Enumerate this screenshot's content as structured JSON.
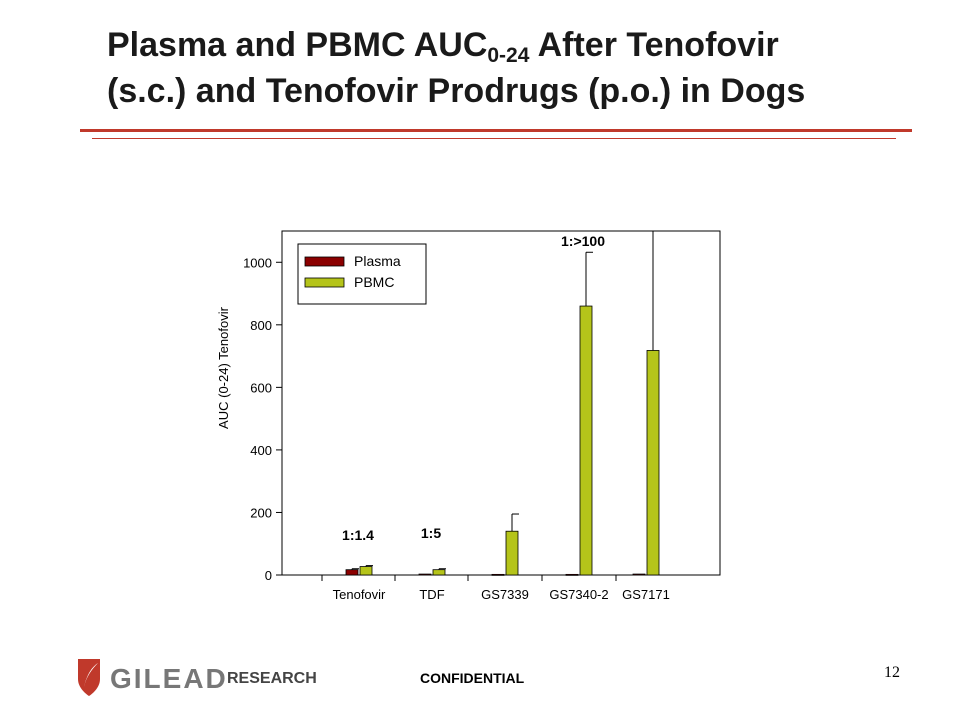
{
  "slide": {
    "title_line1_pre": "Plasma and PBMC AUC",
    "title_sub": "0-24",
    "title_line1_post": " After Tenofovir",
    "title_line2": "(s.c.) and Tenofovir Prodrugs (p.o.) in Dogs",
    "accent_color": "#c0392b"
  },
  "chart_data": {
    "type": "bar",
    "ylabel": "AUC (0-24) Tenofovir",
    "ylim": [
      0,
      1100
    ],
    "yticks": [
      0,
      200,
      400,
      600,
      800,
      1000
    ],
    "categories": [
      "Tenofovir",
      "TDF",
      "GS7339",
      "GS7340-2",
      "GS7171"
    ],
    "series": [
      {
        "name": "Plasma",
        "color": "#8b0000",
        "values": [
          17,
          3,
          2,
          2,
          3
        ],
        "error": [
          3,
          0,
          0,
          0,
          0
        ]
      },
      {
        "name": "PBMC",
        "color": "#b5c41a",
        "values": [
          27,
          17,
          140,
          860,
          718
        ],
        "error": [
          3,
          3,
          55,
          172,
          400
        ]
      }
    ],
    "annotations": [
      {
        "category": "Tenofovir",
        "text": "1:1.4"
      },
      {
        "category": "TDF",
        "text": "1:5"
      },
      {
        "category": "GS7340-2",
        "text": "1:>100"
      }
    ],
    "legend_position": "top-left",
    "grid": false
  },
  "footer": {
    "logo_word": "GILEAD",
    "logo_sub": "RESEARCH",
    "confidential": "CONFIDENTIAL",
    "page_number": "12",
    "logo_color": "#c0392b"
  }
}
